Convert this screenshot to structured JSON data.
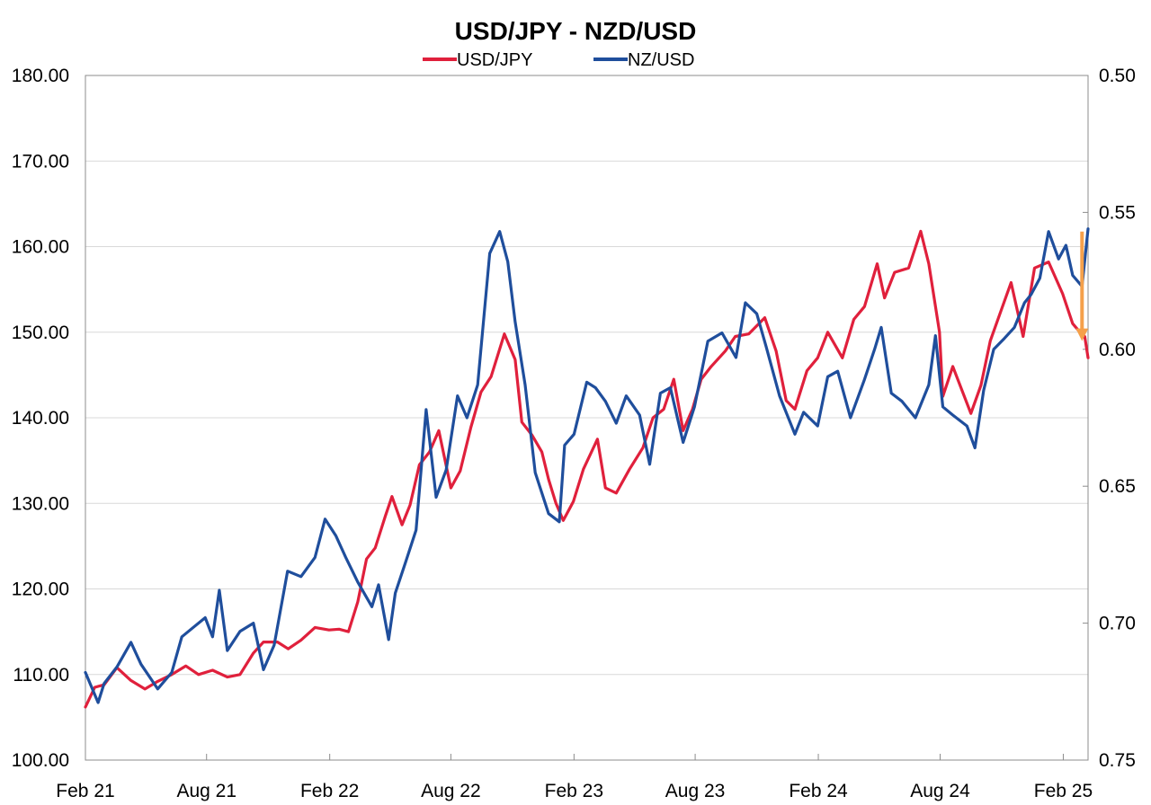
{
  "chart_data": {
    "type": "line",
    "title": "USD/JPY - NZD/USD",
    "legend_position": "top",
    "grid": true,
    "x_tick_labels": [
      "Feb 21",
      "Aug 21",
      "Feb 22",
      "Aug 22",
      "Feb 23",
      "Aug 23",
      "Feb 24",
      "Aug 24",
      "Feb 25"
    ],
    "x_tick_dates": [
      "2021-02-01",
      "2021-08-01",
      "2022-02-01",
      "2022-08-01",
      "2023-02-01",
      "2023-08-01",
      "2024-02-01",
      "2024-08-01",
      "2025-02-01"
    ],
    "xlim": [
      "2021-02-01",
      "2025-03-10"
    ],
    "y_left": {
      "lim": [
        100,
        180
      ],
      "ticks": [
        "100.00",
        "110.00",
        "120.00",
        "130.00",
        "140.00",
        "150.00",
        "160.00",
        "170.00",
        "180.00"
      ]
    },
    "y_right": {
      "lim": [
        0.75,
        0.5
      ],
      "inverted": true,
      "ticks": [
        "0.50",
        "0.55",
        "0.60",
        "0.65",
        "0.70",
        "0.75"
      ]
    },
    "annotation": {
      "type": "arrow",
      "color": "#f5a04a",
      "date": "2025-03-01",
      "from": 0.557,
      "to": 0.597,
      "axis": "right"
    },
    "series": [
      {
        "name": "USD/JPY",
        "axis": "left",
        "color": "#e0203c",
        "points": [
          [
            "2021-02-01",
            106.2
          ],
          [
            "2021-02-15",
            108.5
          ],
          [
            "2021-03-01",
            108.8
          ],
          [
            "2021-03-20",
            110.8
          ],
          [
            "2021-04-10",
            109.3
          ],
          [
            "2021-05-01",
            108.3
          ],
          [
            "2021-05-20",
            109.2
          ],
          [
            "2021-06-10",
            110.0
          ],
          [
            "2021-07-01",
            111.0
          ],
          [
            "2021-07-20",
            110.0
          ],
          [
            "2021-08-10",
            110.5
          ],
          [
            "2021-09-01",
            109.7
          ],
          [
            "2021-09-20",
            110.0
          ],
          [
            "2021-10-10",
            112.5
          ],
          [
            "2021-10-25",
            113.8
          ],
          [
            "2021-11-15",
            113.8
          ],
          [
            "2021-12-01",
            113.0
          ],
          [
            "2021-12-20",
            114.0
          ],
          [
            "2022-01-10",
            115.5
          ],
          [
            "2022-01-31",
            115.2
          ],
          [
            "2022-02-15",
            115.3
          ],
          [
            "2022-03-01",
            115.0
          ],
          [
            "2022-03-15",
            118.5
          ],
          [
            "2022-03-28",
            123.5
          ],
          [
            "2022-04-10",
            124.8
          ],
          [
            "2022-04-25",
            128.5
          ],
          [
            "2022-05-05",
            130.8
          ],
          [
            "2022-05-20",
            127.5
          ],
          [
            "2022-06-01",
            129.8
          ],
          [
            "2022-06-15",
            134.5
          ],
          [
            "2022-06-30",
            136.0
          ],
          [
            "2022-07-14",
            138.5
          ],
          [
            "2022-08-01",
            131.8
          ],
          [
            "2022-08-15",
            133.8
          ],
          [
            "2022-08-31",
            138.9
          ],
          [
            "2022-09-15",
            143.0
          ],
          [
            "2022-09-30",
            144.8
          ],
          [
            "2022-10-20",
            149.8
          ],
          [
            "2022-11-05",
            146.8
          ],
          [
            "2022-11-15",
            139.5
          ],
          [
            "2022-11-30",
            138.0
          ],
          [
            "2022-12-15",
            136.0
          ],
          [
            "2022-12-25",
            132.8
          ],
          [
            "2023-01-05",
            130.0
          ],
          [
            "2023-01-16",
            128.0
          ],
          [
            "2023-01-31",
            130.2
          ],
          [
            "2023-02-15",
            134.0
          ],
          [
            "2023-03-08",
            137.5
          ],
          [
            "2023-03-20",
            131.8
          ],
          [
            "2023-04-05",
            131.2
          ],
          [
            "2023-04-25",
            134.0
          ],
          [
            "2023-05-15",
            136.5
          ],
          [
            "2023-05-30",
            140.0
          ],
          [
            "2023-06-15",
            141.0
          ],
          [
            "2023-06-30",
            144.5
          ],
          [
            "2023-07-14",
            138.5
          ],
          [
            "2023-07-28",
            141.0
          ],
          [
            "2023-08-10",
            144.5
          ],
          [
            "2023-08-25",
            146.0
          ],
          [
            "2023-09-15",
            147.8
          ],
          [
            "2023-09-30",
            149.5
          ],
          [
            "2023-10-20",
            149.8
          ],
          [
            "2023-11-13",
            151.7
          ],
          [
            "2023-11-30",
            147.8
          ],
          [
            "2023-12-15",
            142.0
          ],
          [
            "2023-12-28",
            141.0
          ],
          [
            "2024-01-15",
            145.5
          ],
          [
            "2024-01-31",
            147.0
          ],
          [
            "2024-02-15",
            150.0
          ],
          [
            "2024-03-08",
            147.0
          ],
          [
            "2024-03-25",
            151.5
          ],
          [
            "2024-04-10",
            153.0
          ],
          [
            "2024-04-29",
            158.0
          ],
          [
            "2024-05-10",
            154.0
          ],
          [
            "2024-05-25",
            157.0
          ],
          [
            "2024-06-15",
            157.5
          ],
          [
            "2024-07-03",
            161.8
          ],
          [
            "2024-07-15",
            158.0
          ],
          [
            "2024-07-31",
            150.0
          ],
          [
            "2024-08-05",
            142.5
          ],
          [
            "2024-08-20",
            146.0
          ],
          [
            "2024-09-16",
            140.5
          ],
          [
            "2024-10-01",
            143.8
          ],
          [
            "2024-10-15",
            149.0
          ],
          [
            "2024-10-31",
            152.5
          ],
          [
            "2024-11-15",
            155.8
          ],
          [
            "2024-12-03",
            149.5
          ],
          [
            "2024-12-20",
            157.5
          ],
          [
            "2025-01-10",
            158.2
          ],
          [
            "2025-01-31",
            154.5
          ],
          [
            "2025-02-15",
            151.0
          ],
          [
            "2025-02-28",
            149.8
          ],
          [
            "2025-03-05",
            149.5
          ],
          [
            "2025-03-10",
            147.0
          ]
        ]
      },
      {
        "name": "NZ/USD",
        "axis": "right",
        "color": "#1f4e9c",
        "points": [
          [
            "2021-02-01",
            0.718
          ],
          [
            "2021-02-20",
            0.729
          ],
          [
            "2021-03-01",
            0.722
          ],
          [
            "2021-03-20",
            0.716
          ],
          [
            "2021-04-10",
            0.707
          ],
          [
            "2021-04-25",
            0.715
          ],
          [
            "2021-05-20",
            0.724
          ],
          [
            "2021-06-10",
            0.718
          ],
          [
            "2021-06-25",
            0.705
          ],
          [
            "2021-07-10",
            0.702
          ],
          [
            "2021-07-30",
            0.698
          ],
          [
            "2021-08-10",
            0.705
          ],
          [
            "2021-08-20",
            0.688
          ],
          [
            "2021-09-01",
            0.71
          ],
          [
            "2021-09-20",
            0.703
          ],
          [
            "2021-10-10",
            0.7
          ],
          [
            "2021-10-25",
            0.717
          ],
          [
            "2021-11-10",
            0.708
          ],
          [
            "2021-11-30",
            0.681
          ],
          [
            "2021-12-20",
            0.683
          ],
          [
            "2022-01-10",
            0.676
          ],
          [
            "2022-01-25",
            0.662
          ],
          [
            "2022-02-10",
            0.668
          ],
          [
            "2022-02-25",
            0.676
          ],
          [
            "2022-03-15",
            0.685
          ],
          [
            "2022-04-05",
            0.694
          ],
          [
            "2022-04-15",
            0.686
          ],
          [
            "2022-04-30",
            0.706
          ],
          [
            "2022-05-10",
            0.689
          ],
          [
            "2022-05-25",
            0.678
          ],
          [
            "2022-06-10",
            0.666
          ],
          [
            "2022-06-25",
            0.622
          ],
          [
            "2022-07-10",
            0.654
          ],
          [
            "2022-07-25",
            0.644
          ],
          [
            "2022-08-11",
            0.617
          ],
          [
            "2022-08-25",
            0.625
          ],
          [
            "2022-09-10",
            0.613
          ],
          [
            "2022-09-28",
            0.565
          ],
          [
            "2022-10-13",
            0.557
          ],
          [
            "2022-10-25",
            0.568
          ],
          [
            "2022-11-05",
            0.59
          ],
          [
            "2022-11-20",
            0.613
          ],
          [
            "2022-12-05",
            0.645
          ],
          [
            "2022-12-25",
            0.66
          ],
          [
            "2023-01-10",
            0.663
          ],
          [
            "2023-01-18",
            0.635
          ],
          [
            "2023-02-01",
            0.631
          ],
          [
            "2023-02-20",
            0.612
          ],
          [
            "2023-03-05",
            0.614
          ],
          [
            "2023-03-20",
            0.619
          ],
          [
            "2023-04-05",
            0.627
          ],
          [
            "2023-04-20",
            0.617
          ],
          [
            "2023-05-10",
            0.624
          ],
          [
            "2023-05-25",
            0.642
          ],
          [
            "2023-06-10",
            0.616
          ],
          [
            "2023-06-25",
            0.614
          ],
          [
            "2023-07-14",
            0.634
          ],
          [
            "2023-07-31",
            0.621
          ],
          [
            "2023-08-20",
            0.597
          ],
          [
            "2023-09-10",
            0.594
          ],
          [
            "2023-10-01",
            0.603
          ],
          [
            "2023-10-15",
            0.583
          ],
          [
            "2023-11-01",
            0.587
          ],
          [
            "2023-11-15",
            0.599
          ],
          [
            "2023-12-05",
            0.617
          ],
          [
            "2023-12-28",
            0.631
          ],
          [
            "2024-01-10",
            0.623
          ],
          [
            "2024-01-31",
            0.628
          ],
          [
            "2024-02-15",
            0.61
          ],
          [
            "2024-03-01",
            0.608
          ],
          [
            "2024-03-20",
            0.625
          ],
          [
            "2024-04-10",
            0.611
          ],
          [
            "2024-04-25",
            0.6
          ],
          [
            "2024-05-05",
            0.592
          ],
          [
            "2024-05-20",
            0.616
          ],
          [
            "2024-06-05",
            0.619
          ],
          [
            "2024-06-25",
            0.625
          ],
          [
            "2024-07-15",
            0.613
          ],
          [
            "2024-07-25",
            0.595
          ],
          [
            "2024-08-05",
            0.621
          ],
          [
            "2024-08-20",
            0.624
          ],
          [
            "2024-09-10",
            0.628
          ],
          [
            "2024-09-22",
            0.636
          ],
          [
            "2024-10-05",
            0.615
          ],
          [
            "2024-10-20",
            0.6
          ],
          [
            "2024-11-05",
            0.596
          ],
          [
            "2024-11-20",
            0.592
          ],
          [
            "2024-12-05",
            0.583
          ],
          [
            "2024-12-15",
            0.58
          ],
          [
            "2024-12-28",
            0.574
          ],
          [
            "2025-01-10",
            0.557
          ],
          [
            "2025-01-25",
            0.567
          ],
          [
            "2025-02-05",
            0.562
          ],
          [
            "2025-02-15",
            0.573
          ],
          [
            "2025-03-01",
            0.577
          ],
          [
            "2025-03-10",
            0.556
          ]
        ]
      }
    ]
  }
}
